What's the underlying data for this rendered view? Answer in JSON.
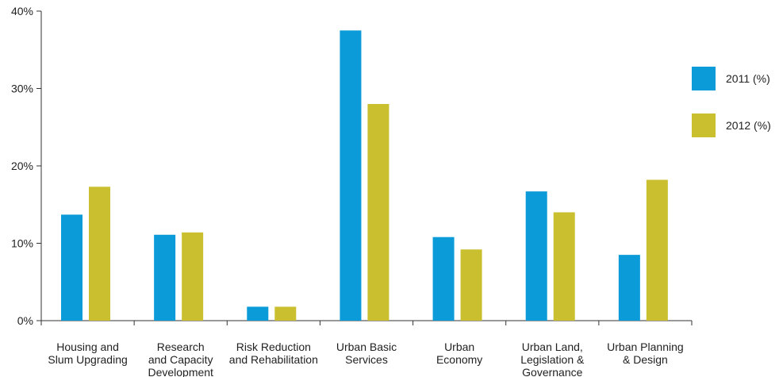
{
  "chart_data": {
    "type": "bar",
    "categories": [
      [
        "Housing and",
        "Slum Upgrading"
      ],
      [
        "Research",
        "and Capacity",
        "Development"
      ],
      [
        "Risk Reduction",
        "and Rehabilitation"
      ],
      [
        "Urban Basic",
        "Services"
      ],
      [
        "Urban",
        "Economy"
      ],
      [
        "Urban Land,",
        "Legislation &",
        "Governance"
      ],
      [
        "Urban Planning",
        "& Design"
      ]
    ],
    "series": [
      {
        "name": "2011 (%)",
        "color": "#0a9bd8",
        "values": [
          13.7,
          11.1,
          1.8,
          37.5,
          10.8,
          16.7,
          8.5
        ]
      },
      {
        "name": "2012 (%)",
        "color": "#cabf2e",
        "values": [
          17.3,
          11.4,
          1.8,
          28.0,
          9.2,
          14.0,
          18.2
        ]
      }
    ],
    "yticks": [
      "0%",
      "10%",
      "20%",
      "30%",
      "40%"
    ],
    "ylim": [
      0,
      40
    ],
    "grid": false,
    "legend": "right"
  }
}
